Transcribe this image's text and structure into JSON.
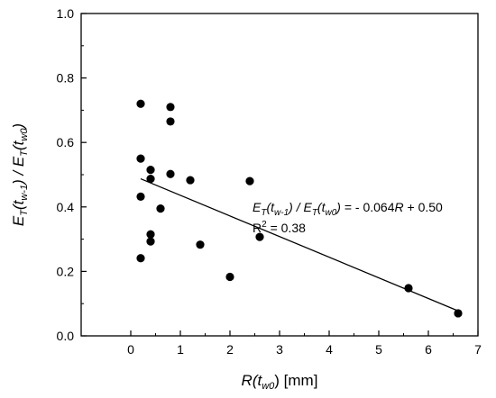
{
  "chart_data": {
    "type": "scatter",
    "xlim": [
      -1,
      7
    ],
    "ylim": [
      0,
      1.0
    ],
    "x_ticks": [
      0,
      1,
      2,
      3,
      4,
      5,
      6,
      7
    ],
    "y_ticks": [
      0.0,
      0.2,
      0.4,
      0.6,
      0.8,
      1.0
    ],
    "x_tick_labels": [
      "0",
      "1",
      "2",
      "3",
      "4",
      "5",
      "6",
      "7"
    ],
    "y_tick_labels": [
      "0.0",
      "0.2",
      "0.4",
      "0.6",
      "0.8",
      "1.0"
    ],
    "grid": false,
    "legend": "none",
    "xlabel": "R(tw0) [mm]",
    "ylabel": "ET(tw-1) / ET(tw0)",
    "points": [
      {
        "x": 0.2,
        "y": 0.72
      },
      {
        "x": 0.8,
        "y": 0.71
      },
      {
        "x": 0.8,
        "y": 0.665
      },
      {
        "x": 0.2,
        "y": 0.55
      },
      {
        "x": 0.4,
        "y": 0.515
      },
      {
        "x": 0.8,
        "y": 0.502
      },
      {
        "x": 0.4,
        "y": 0.487
      },
      {
        "x": 1.2,
        "y": 0.483
      },
      {
        "x": 2.4,
        "y": 0.48
      },
      {
        "x": 0.2,
        "y": 0.432
      },
      {
        "x": 0.6,
        "y": 0.395
      },
      {
        "x": 0.4,
        "y": 0.315
      },
      {
        "x": 2.6,
        "y": 0.307
      },
      {
        "x": 0.4,
        "y": 0.293
      },
      {
        "x": 1.4,
        "y": 0.283
      },
      {
        "x": 0.2,
        "y": 0.241
      },
      {
        "x": 2.0,
        "y": 0.183
      },
      {
        "x": 5.6,
        "y": 0.148
      },
      {
        "x": 6.6,
        "y": 0.07
      }
    ],
    "fit_line": {
      "slope": -0.064,
      "intercept": 0.5,
      "x_range": [
        0.2,
        6.6
      ]
    },
    "annotations": {
      "equation": "ET(tw-1) / ET(tw0) = - 0.064R + 0.50",
      "r_squared": "R2 = 0.38"
    }
  },
  "colors": {
    "marker": "#000000",
    "line": "#000000",
    "axis": "#000000",
    "background": "#ffffff"
  }
}
